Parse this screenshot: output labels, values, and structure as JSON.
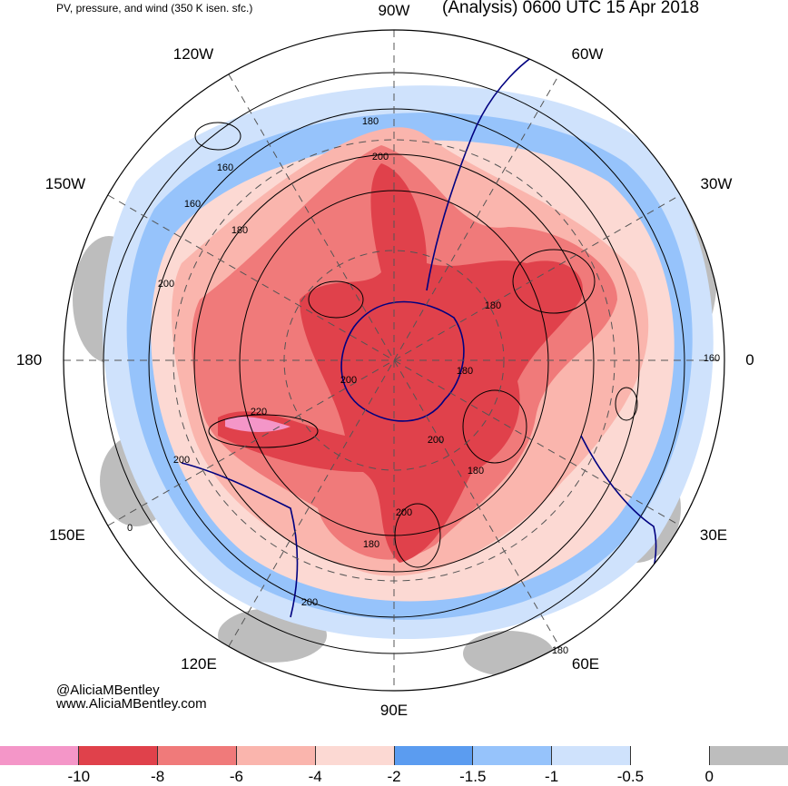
{
  "header": {
    "subtitle": "PV, pressure, and wind (350 K isen. sfc.)",
    "valid_time": "(Analysis) 0600 UTC 15 Apr 2018"
  },
  "longitude_labels": {
    "lon_90w": "90W",
    "lon_120w": "120W",
    "lon_60w": "60W",
    "lon_150w": "150W",
    "lon_30w": "30W",
    "lon_180": "180",
    "lon_0": "0",
    "lon_150e": "150E",
    "lon_30e": "30E",
    "lon_120e": "120E",
    "lon_60e": "60E",
    "lon_90e": "90E"
  },
  "contour_labels": [
    "180",
    "200",
    "160",
    "160",
    "180",
    "200",
    "200",
    "220",
    "200",
    "180",
    "160",
    "200",
    "180",
    "200",
    "180",
    "180",
    "200",
    "0",
    "180"
  ],
  "credits": {
    "handle": "@AliciaMBentley",
    "website": "www.AliciaMBentley.com"
  },
  "colorbar": {
    "colors": [
      "#f496c8",
      "#e0414b",
      "#f07a7a",
      "#fab5ad",
      "#fcd9d3",
      "#5b9cf0",
      "#96c3fb",
      "#cfe2fc",
      "#ffffff",
      "#bdbdbd"
    ],
    "ticks": [
      "-10",
      "-8",
      "-6",
      "-4",
      "-2",
      "-1.5",
      "-1",
      "-0.5",
      "0"
    ]
  },
  "map_colors": {
    "strong_negative_pv": "#e0414b",
    "moderate_negative_pv": "#f07a7a",
    "weak_negative_pv": "#fab5ad",
    "faint_negative_pv": "#fcd9d3",
    "blue_band": "#5b9cf0",
    "light_blue": "#96c3fb",
    "grey_positive": "#bdbdbd",
    "coastline": "#000080"
  }
}
